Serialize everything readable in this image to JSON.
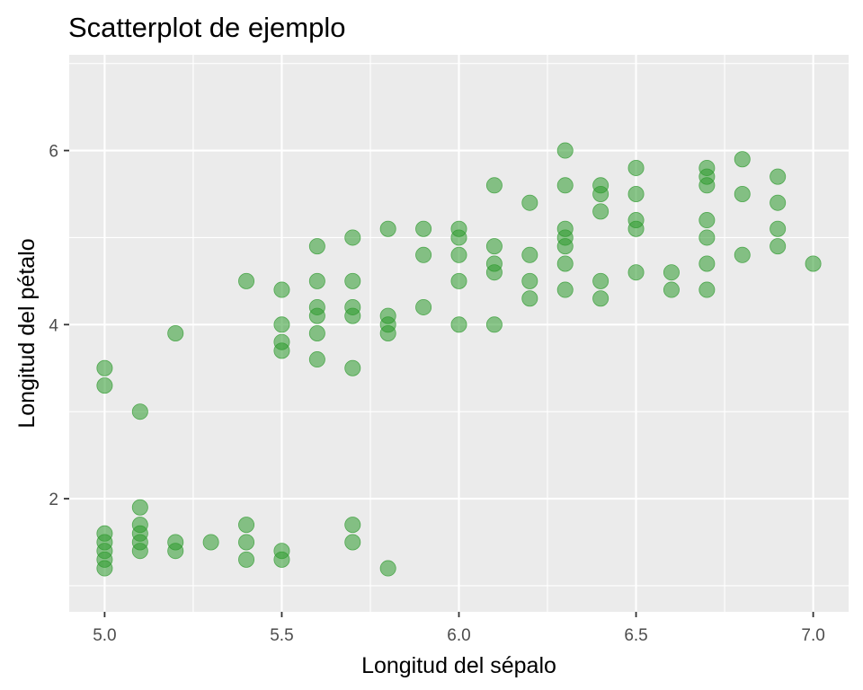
{
  "chart_data": {
    "type": "scatter",
    "title": "Scatterplot de ejemplo",
    "xlabel": "Longitud del sépalo",
    "ylabel": "Longitud del pétalo",
    "xlim": [
      4.9,
      7.1
    ],
    "ylim": [
      0.7,
      7.1
    ],
    "x_ticks": [
      5.0,
      5.5,
      6.0,
      6.5,
      7.0
    ],
    "x_tick_labels": [
      "5.0",
      "5.5",
      "6.0",
      "6.5",
      "7.0"
    ],
    "y_ticks": [
      2,
      4,
      6
    ],
    "y_tick_labels": [
      "2",
      "4",
      "6"
    ],
    "grid": true,
    "legend": "none",
    "point_color": "#2e9a2e",
    "point_opacity": 0.55,
    "panel_background": "#ebebeb",
    "points": [
      [
        5.0,
        1.6
      ],
      [
        5.0,
        1.5
      ],
      [
        5.0,
        1.4
      ],
      [
        5.0,
        1.3
      ],
      [
        5.0,
        1.2
      ],
      [
        5.0,
        3.3
      ],
      [
        5.0,
        3.5
      ],
      [
        5.1,
        1.4
      ],
      [
        5.1,
        1.5
      ],
      [
        5.1,
        1.6
      ],
      [
        5.1,
        1.7
      ],
      [
        5.1,
        1.9
      ],
      [
        5.1,
        3.0
      ],
      [
        5.2,
        1.4
      ],
      [
        5.2,
        1.5
      ],
      [
        5.2,
        3.9
      ],
      [
        5.3,
        1.5
      ],
      [
        5.4,
        1.3
      ],
      [
        5.4,
        1.5
      ],
      [
        5.4,
        1.7
      ],
      [
        5.4,
        4.5
      ],
      [
        5.5,
        1.3
      ],
      [
        5.5,
        1.4
      ],
      [
        5.5,
        3.7
      ],
      [
        5.5,
        3.8
      ],
      [
        5.5,
        4.0
      ],
      [
        5.5,
        4.4
      ],
      [
        5.6,
        3.6
      ],
      [
        5.6,
        3.9
      ],
      [
        5.6,
        4.1
      ],
      [
        5.6,
        4.2
      ],
      [
        5.6,
        4.5
      ],
      [
        5.6,
        4.9
      ],
      [
        5.7,
        1.5
      ],
      [
        5.7,
        1.7
      ],
      [
        5.7,
        3.5
      ],
      [
        5.7,
        4.1
      ],
      [
        5.7,
        4.2
      ],
      [
        5.7,
        4.5
      ],
      [
        5.7,
        5.0
      ],
      [
        5.8,
        1.2
      ],
      [
        5.8,
        3.9
      ],
      [
        5.8,
        4.0
      ],
      [
        5.8,
        4.1
      ],
      [
        5.8,
        5.1
      ],
      [
        5.9,
        4.2
      ],
      [
        5.9,
        4.8
      ],
      [
        5.9,
        5.1
      ],
      [
        6.0,
        4.0
      ],
      [
        6.0,
        4.5
      ],
      [
        6.0,
        4.8
      ],
      [
        6.0,
        5.0
      ],
      [
        6.0,
        5.1
      ],
      [
        6.1,
        4.0
      ],
      [
        6.1,
        4.6
      ],
      [
        6.1,
        4.7
      ],
      [
        6.1,
        4.9
      ],
      [
        6.1,
        5.6
      ],
      [
        6.2,
        4.3
      ],
      [
        6.2,
        4.5
      ],
      [
        6.2,
        4.8
      ],
      [
        6.2,
        5.4
      ],
      [
        6.3,
        4.4
      ],
      [
        6.3,
        4.7
      ],
      [
        6.3,
        4.9
      ],
      [
        6.3,
        5.0
      ],
      [
        6.3,
        5.1
      ],
      [
        6.3,
        5.6
      ],
      [
        6.3,
        6.0
      ],
      [
        6.4,
        4.3
      ],
      [
        6.4,
        4.5
      ],
      [
        6.4,
        5.3
      ],
      [
        6.4,
        5.5
      ],
      [
        6.4,
        5.6
      ],
      [
        6.5,
        4.6
      ],
      [
        6.5,
        5.1
      ],
      [
        6.5,
        5.2
      ],
      [
        6.5,
        5.5
      ],
      [
        6.5,
        5.8
      ],
      [
        6.6,
        4.4
      ],
      [
        6.6,
        4.6
      ],
      [
        6.7,
        4.4
      ],
      [
        6.7,
        4.7
      ],
      [
        6.7,
        5.0
      ],
      [
        6.7,
        5.2
      ],
      [
        6.7,
        5.6
      ],
      [
        6.7,
        5.7
      ],
      [
        6.7,
        5.8
      ],
      [
        6.8,
        4.8
      ],
      [
        6.8,
        5.5
      ],
      [
        6.8,
        5.9
      ],
      [
        6.9,
        4.9
      ],
      [
        6.9,
        5.1
      ],
      [
        6.9,
        5.4
      ],
      [
        6.9,
        5.7
      ],
      [
        7.0,
        4.7
      ]
    ]
  }
}
